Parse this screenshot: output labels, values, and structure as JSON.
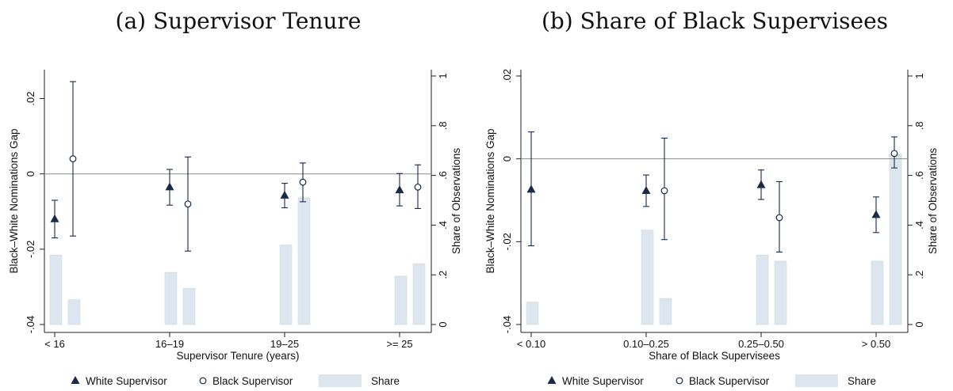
{
  "colors": {
    "bar": "#dde6ee",
    "bar_stroke": "#c8d4de",
    "marker": "#1a2a47",
    "axis": "#222222",
    "zero_line": "#8c8c8c"
  },
  "chart_data": [
    {
      "type": "scatter",
      "panel_label": "(a) Supervisor Tenure",
      "xlabel": "Supervisor Tenure (years)",
      "ylabel": "Black–White Nominations Gap",
      "y2label": "Share of Observations",
      "categories": [
        "< 16",
        "16–19",
        "19–25",
        ">= 25"
      ],
      "ylim": [
        -0.04,
        0.026
      ],
      "yticks": [
        -0.04,
        -0.02,
        0,
        0.02
      ],
      "ytick_labels": [
        "-.04",
        "-.02",
        "0",
        ".02"
      ],
      "y2lim": [
        0,
        1
      ],
      "y2ticks": [
        0,
        0.2,
        0.4,
        0.6,
        0.8,
        1
      ],
      "y2tick_labels": [
        "0",
        ".2",
        ".4",
        ".6",
        ".8",
        "1"
      ],
      "reference_line": 0,
      "series": [
        {
          "name": "White Supervisor",
          "marker": "triangle",
          "values": [
            -0.012,
            -0.0035,
            -0.0057,
            -0.0043
          ],
          "ci_low": [
            -0.017,
            -0.0083,
            -0.009,
            -0.0085
          ],
          "ci_high": [
            -0.007,
            0.0012,
            -0.0025,
            0.0001
          ]
        },
        {
          "name": "Black Supervisor",
          "marker": "circle",
          "values": [
            0.004,
            -0.008,
            -0.0022,
            -0.0035
          ],
          "ci_low": [
            -0.0165,
            -0.0205,
            -0.0074,
            -0.0092
          ],
          "ci_high": [
            0.0245,
            0.0045,
            0.0029,
            0.0024
          ]
        }
      ],
      "share": {
        "name": "Share",
        "white": [
          0.28,
          0.21,
          0.32,
          0.195
        ],
        "black": [
          0.1,
          0.145,
          0.51,
          0.245
        ]
      }
    },
    {
      "type": "scatter",
      "panel_label": "(b) Share of Black Supervisees",
      "xlabel": "Share of Black Supervisees",
      "ylabel": "Black–White Nominations Gap",
      "y2label": "Share of Observations",
      "categories": [
        "< 0.10",
        "0.10–0.25",
        "0.25–0.50",
        "> 0.50"
      ],
      "ylim": [
        -0.04,
        0.02
      ],
      "yticks": [
        -0.04,
        -0.02,
        0,
        0.02
      ],
      "ytick_labels": [
        "-.04",
        "-.02",
        "0",
        ".02"
      ],
      "y2lim": [
        0,
        1
      ],
      "y2ticks": [
        0,
        0.2,
        0.4,
        0.6,
        0.8,
        1
      ],
      "y2tick_labels": [
        "0",
        ".2",
        ".4",
        ".6",
        ".8",
        "1"
      ],
      "reference_line": 0,
      "series": [
        {
          "name": "White Supervisor",
          "marker": "triangle",
          "values": [
            -0.0074,
            -0.0077,
            -0.0063,
            -0.0135
          ],
          "ci_low": [
            -0.021,
            -0.0115,
            -0.0098,
            -0.0178
          ],
          "ci_high": [
            0.0065,
            -0.0039,
            -0.0027,
            -0.0092
          ]
        },
        {
          "name": "Black Supervisor",
          "marker": "circle",
          "values": [
            null,
            -0.0077,
            -0.0142,
            0.0013
          ],
          "ci_low": [
            null,
            -0.0195,
            -0.0225,
            -0.0022
          ],
          "ci_high": [
            null,
            0.005,
            -0.0055,
            0.0053
          ]
        }
      ],
      "share": {
        "name": "Share",
        "white": [
          0.09,
          0.38,
          0.28,
          0.255
        ],
        "black": [
          0.0,
          0.105,
          0.255,
          0.685
        ]
      }
    }
  ]
}
